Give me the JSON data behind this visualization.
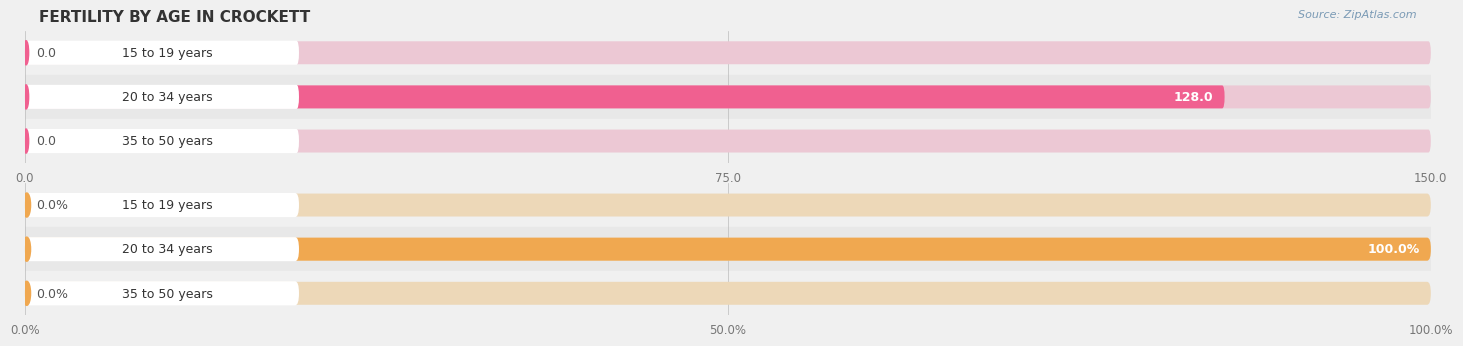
{
  "title": "FERTILITY BY AGE IN CROCKETT",
  "source_text": "Source: ZipAtlas.com",
  "top_chart": {
    "categories": [
      "15 to 19 years",
      "20 to 34 years",
      "35 to 50 years"
    ],
    "values": [
      0.0,
      128.0,
      0.0
    ],
    "xlim": [
      0,
      150.0
    ],
    "xticks": [
      0.0,
      75.0,
      150.0
    ],
    "bar_color": "#F06090",
    "bar_bg_color": "#ECC8D4",
    "label_inside_color": "#ffffff",
    "label_outside_color": "#555555",
    "pill_bg": "#ffffff",
    "pill_left_circle": "#F06090",
    "pill_bg_light": "#F5E0E8"
  },
  "bottom_chart": {
    "categories": [
      "15 to 19 years",
      "20 to 34 years",
      "35 to 50 years"
    ],
    "values": [
      0.0,
      100.0,
      0.0
    ],
    "xlim": [
      0,
      100.0
    ],
    "xticks": [
      0.0,
      50.0,
      100.0
    ],
    "xtick_labels": [
      "0.0%",
      "50.0%",
      "100.0%"
    ],
    "bar_color": "#F0A850",
    "bar_bg_color": "#EDD8B8",
    "label_inside_color": "#ffffff",
    "label_outside_color": "#555555",
    "pill_bg": "#ffffff",
    "pill_left_circle": "#F0A850",
    "pill_bg_light": "#F5E8D5"
  },
  "background_color": "#f0f0f0",
  "row_bg_color": "#e8e8e8",
  "label_font_size": 9,
  "title_font_size": 11,
  "ylabel_font_size": 9,
  "tick_font_size": 8.5,
  "cat_label_font_size": 9
}
